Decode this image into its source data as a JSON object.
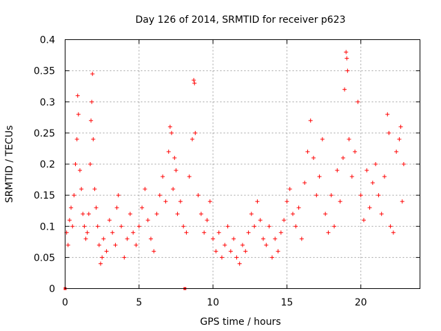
{
  "chart_data": {
    "type": "scatter",
    "title": "Day 126 of 2014, SRMTID for receiver p623",
    "xlabel": "GPS time / hours",
    "ylabel": "SRMTID / TECUs",
    "xlim": [
      0,
      24
    ],
    "ylim": [
      0,
      0.4
    ],
    "xticks": [
      0,
      5,
      10,
      15,
      20
    ],
    "xtick_labels": [
      "0",
      "5",
      "10",
      "15",
      "20"
    ],
    "yticks": [
      0,
      0.05,
      0.1,
      0.15,
      0.2,
      0.25,
      0.3,
      0.35,
      0.4
    ],
    "ytick_labels": [
      "0",
      "0.05",
      "0.1",
      "0.15",
      "0.2",
      "0.25",
      "0.3",
      "0.35",
      "0.4"
    ],
    "grid": true,
    "marker": "+",
    "color": "#ff0000",
    "series": [
      {
        "name": "SRMTID",
        "points": [
          [
            0.0,
            0.0
          ],
          [
            8.1,
            0.0
          ],
          [
            0.1,
            0.09
          ],
          [
            0.2,
            0.07
          ],
          [
            0.3,
            0.11
          ],
          [
            0.4,
            0.13
          ],
          [
            0.5,
            0.1
          ],
          [
            0.6,
            0.15
          ],
          [
            0.7,
            0.2
          ],
          [
            0.8,
            0.24
          ],
          [
            0.85,
            0.31
          ],
          [
            0.9,
            0.28
          ],
          [
            1.0,
            0.19
          ],
          [
            1.1,
            0.16
          ],
          [
            1.2,
            0.12
          ],
          [
            1.3,
            0.1
          ],
          [
            1.4,
            0.08
          ],
          [
            1.5,
            0.09
          ],
          [
            1.6,
            0.12
          ],
          [
            1.7,
            0.2
          ],
          [
            1.75,
            0.27
          ],
          [
            1.8,
            0.3
          ],
          [
            1.85,
            0.345
          ],
          [
            1.9,
            0.24
          ],
          [
            2.0,
            0.16
          ],
          [
            2.1,
            0.13
          ],
          [
            2.2,
            0.1
          ],
          [
            2.3,
            0.07
          ],
          [
            2.4,
            0.04
          ],
          [
            2.5,
            0.05
          ],
          [
            2.6,
            0.08
          ],
          [
            2.8,
            0.06
          ],
          [
            3.0,
            0.11
          ],
          [
            3.2,
            0.09
          ],
          [
            3.4,
            0.07
          ],
          [
            3.5,
            0.13
          ],
          [
            3.6,
            0.15
          ],
          [
            3.8,
            0.1
          ],
          [
            4.0,
            0.05
          ],
          [
            4.2,
            0.08
          ],
          [
            4.4,
            0.12
          ],
          [
            4.6,
            0.09
          ],
          [
            4.8,
            0.07
          ],
          [
            5.0,
            0.1
          ],
          [
            5.2,
            0.13
          ],
          [
            5.4,
            0.16
          ],
          [
            5.6,
            0.11
          ],
          [
            5.8,
            0.08
          ],
          [
            6.0,
            0.06
          ],
          [
            6.2,
            0.12
          ],
          [
            6.4,
            0.15
          ],
          [
            6.6,
            0.18
          ],
          [
            6.8,
            0.14
          ],
          [
            7.0,
            0.22
          ],
          [
            7.1,
            0.26
          ],
          [
            7.2,
            0.25
          ],
          [
            7.3,
            0.16
          ],
          [
            7.4,
            0.21
          ],
          [
            7.5,
            0.19
          ],
          [
            7.6,
            0.12
          ],
          [
            7.8,
            0.14
          ],
          [
            8.0,
            0.1
          ],
          [
            8.2,
            0.09
          ],
          [
            8.4,
            0.18
          ],
          [
            8.6,
            0.24
          ],
          [
            8.7,
            0.335
          ],
          [
            8.75,
            0.33
          ],
          [
            8.8,
            0.25
          ],
          [
            9.0,
            0.15
          ],
          [
            9.2,
            0.12
          ],
          [
            9.4,
            0.09
          ],
          [
            9.6,
            0.11
          ],
          [
            9.8,
            0.14
          ],
          [
            10.0,
            0.08
          ],
          [
            10.2,
            0.06
          ],
          [
            10.4,
            0.09
          ],
          [
            10.6,
            0.05
          ],
          [
            10.8,
            0.07
          ],
          [
            11.0,
            0.1
          ],
          [
            11.2,
            0.06
          ],
          [
            11.4,
            0.08
          ],
          [
            11.6,
            0.05
          ],
          [
            11.8,
            0.04
          ],
          [
            12.0,
            0.07
          ],
          [
            12.2,
            0.06
          ],
          [
            12.4,
            0.09
          ],
          [
            12.6,
            0.12
          ],
          [
            12.8,
            0.1
          ],
          [
            13.0,
            0.14
          ],
          [
            13.2,
            0.11
          ],
          [
            13.4,
            0.08
          ],
          [
            13.6,
            0.07
          ],
          [
            13.8,
            0.1
          ],
          [
            14.0,
            0.05
          ],
          [
            14.2,
            0.08
          ],
          [
            14.4,
            0.06
          ],
          [
            14.6,
            0.09
          ],
          [
            14.8,
            0.11
          ],
          [
            15.0,
            0.14
          ],
          [
            15.2,
            0.16
          ],
          [
            15.4,
            0.12
          ],
          [
            15.6,
            0.1
          ],
          [
            15.8,
            0.13
          ],
          [
            16.0,
            0.08
          ],
          [
            16.2,
            0.17
          ],
          [
            16.4,
            0.22
          ],
          [
            16.6,
            0.27
          ],
          [
            16.8,
            0.21
          ],
          [
            17.0,
            0.15
          ],
          [
            17.2,
            0.18
          ],
          [
            17.4,
            0.24
          ],
          [
            17.6,
            0.12
          ],
          [
            17.8,
            0.09
          ],
          [
            18.0,
            0.15
          ],
          [
            18.2,
            0.1
          ],
          [
            18.4,
            0.19
          ],
          [
            18.6,
            0.14
          ],
          [
            18.8,
            0.21
          ],
          [
            18.9,
            0.32
          ],
          [
            19.0,
            0.38
          ],
          [
            19.05,
            0.37
          ],
          [
            19.1,
            0.35
          ],
          [
            19.2,
            0.24
          ],
          [
            19.4,
            0.18
          ],
          [
            19.6,
            0.22
          ],
          [
            19.8,
            0.3
          ],
          [
            20.0,
            0.15
          ],
          [
            20.2,
            0.11
          ],
          [
            20.4,
            0.19
          ],
          [
            20.6,
            0.13
          ],
          [
            20.8,
            0.17
          ],
          [
            21.0,
            0.2
          ],
          [
            21.2,
            0.15
          ],
          [
            21.4,
            0.12
          ],
          [
            21.6,
            0.18
          ],
          [
            21.8,
            0.28
          ],
          [
            21.9,
            0.25
          ],
          [
            22.0,
            0.1
          ],
          [
            22.2,
            0.09
          ],
          [
            22.4,
            0.22
          ],
          [
            22.6,
            0.24
          ],
          [
            22.7,
            0.26
          ],
          [
            22.8,
            0.14
          ],
          [
            22.9,
            0.2
          ]
        ]
      }
    ]
  }
}
